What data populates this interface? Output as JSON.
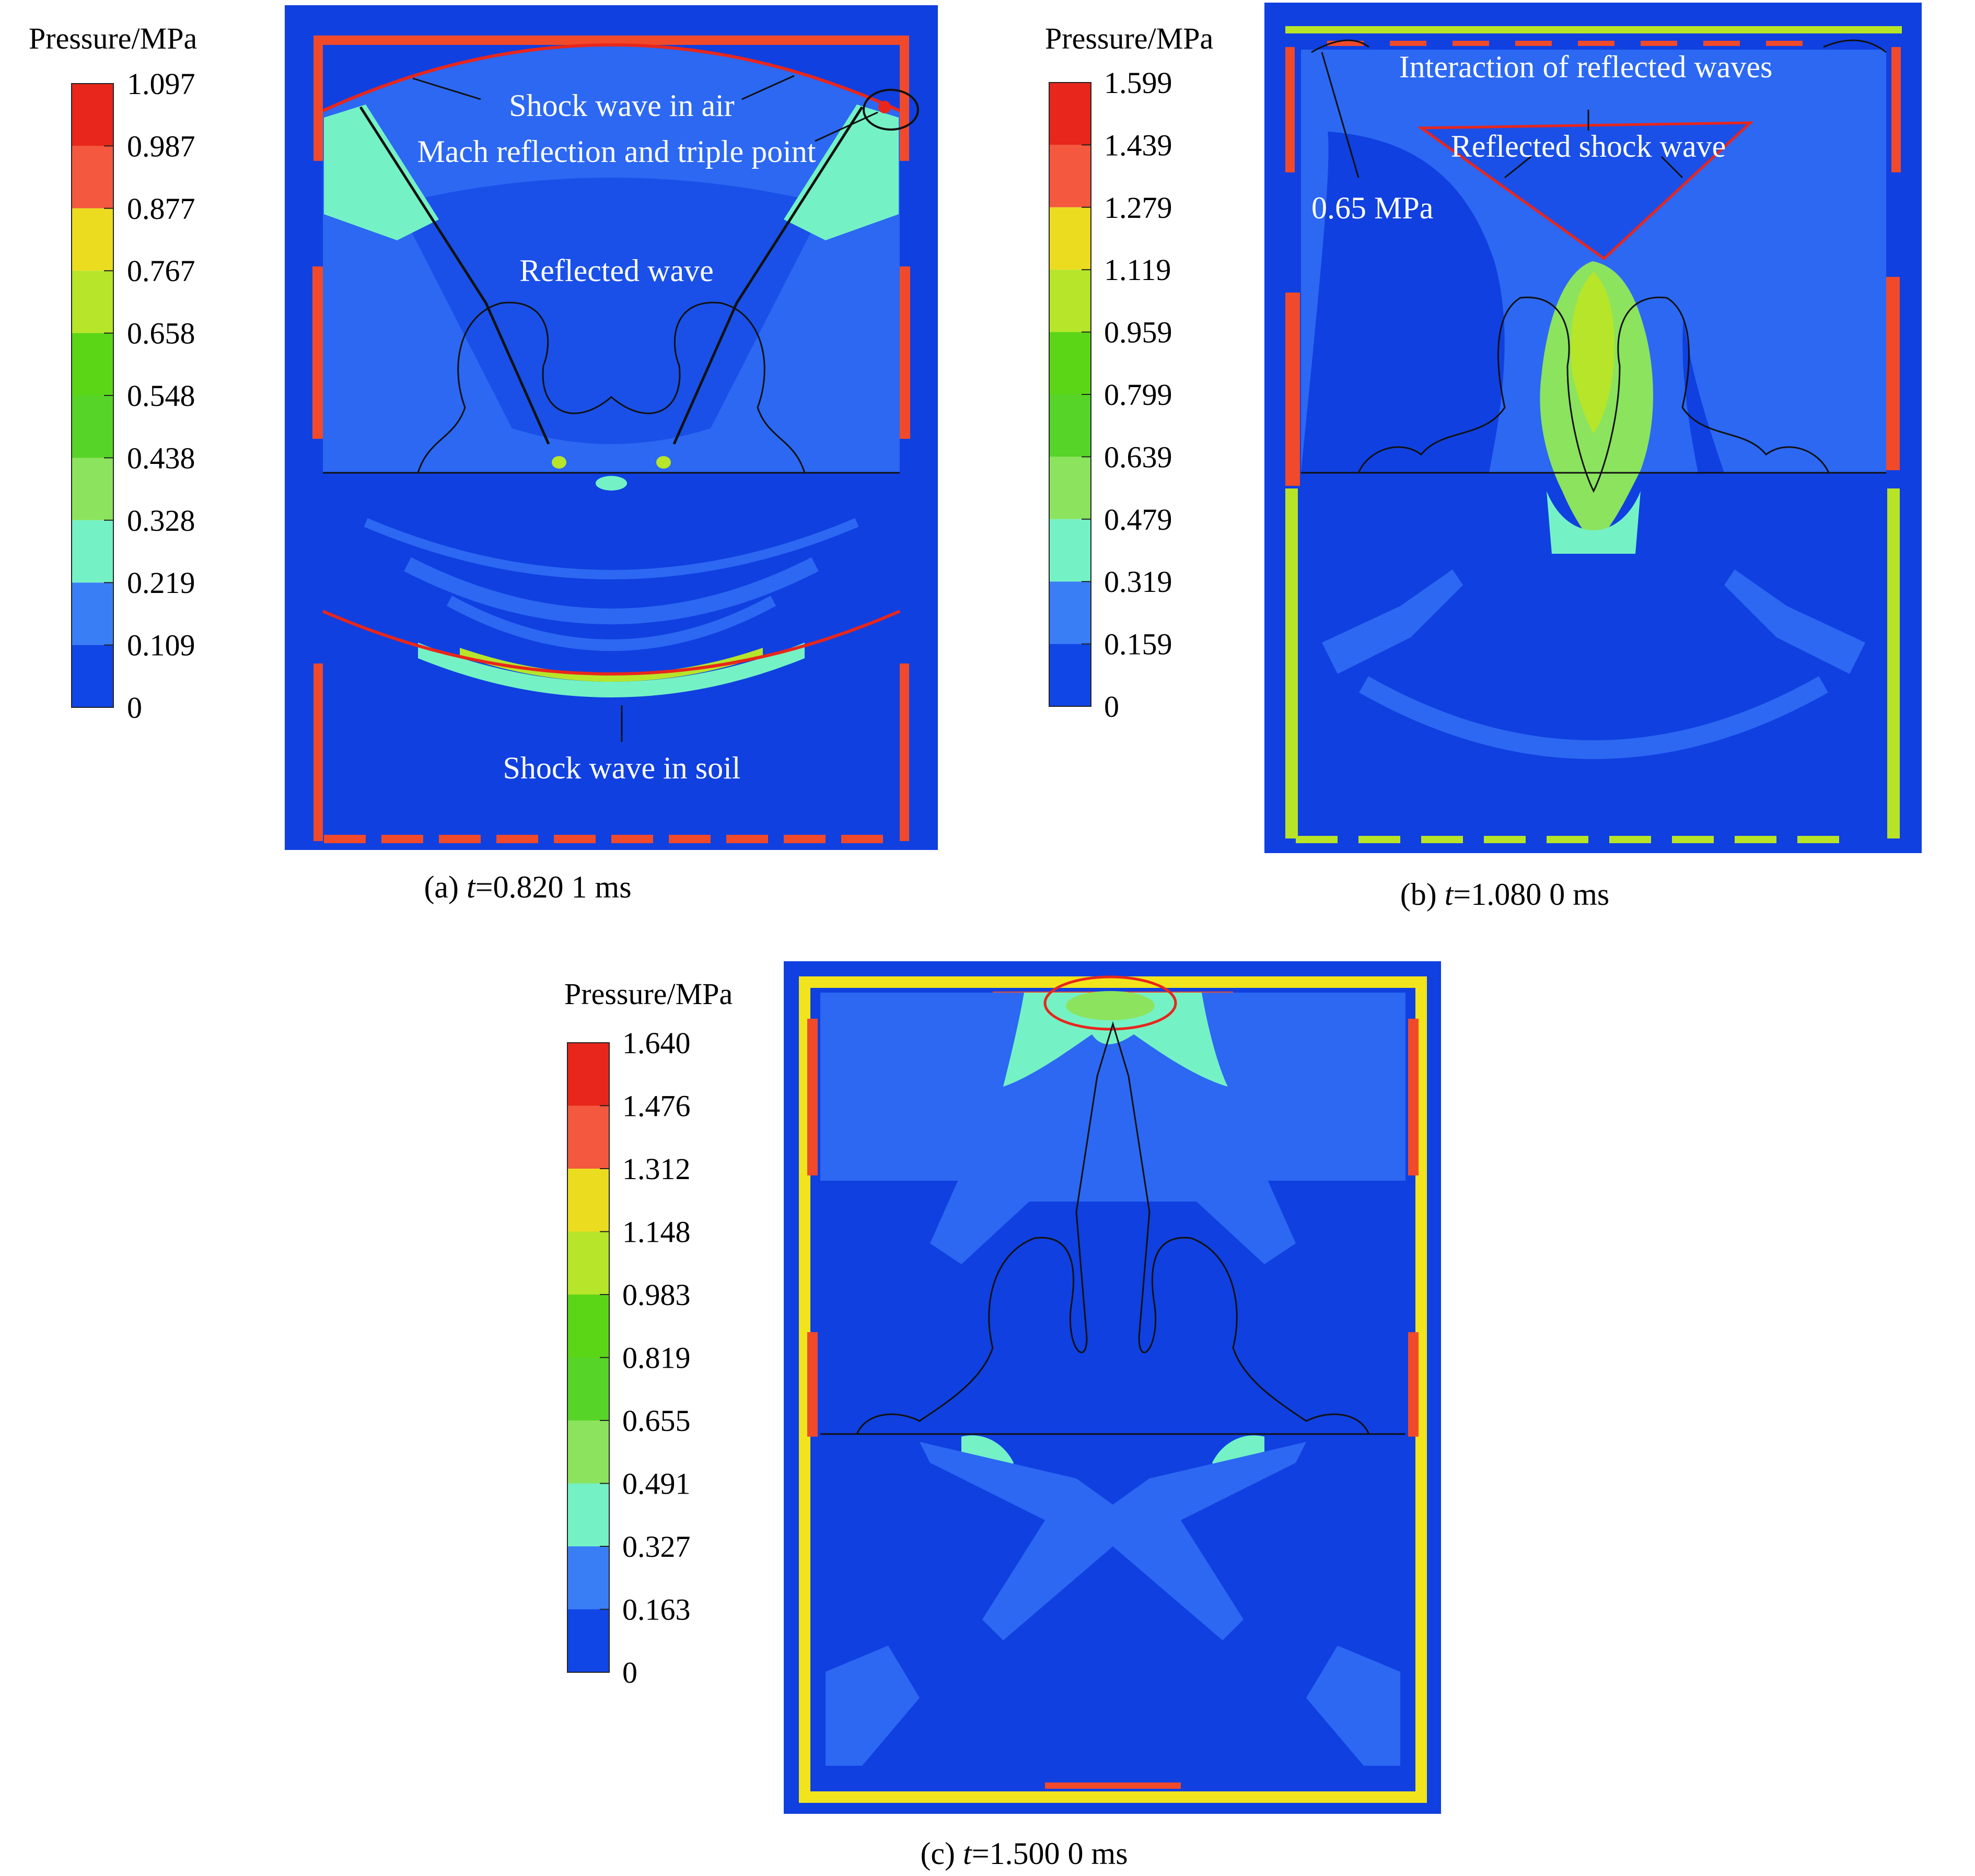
{
  "panels": [
    {
      "id": "a",
      "colorbar": {
        "title": "Pressure/MPa",
        "ticks": [
          "1.097",
          "0.987",
          "0.877",
          "0.767",
          "0.658",
          "0.548",
          "0.438",
          "0.328",
          "0.219",
          "0.109",
          "0"
        ]
      },
      "annotations": [
        "Shock wave in air",
        "Mach reflection and triple point",
        "Reflected wave",
        "Shock wave in soil"
      ],
      "caption": {
        "prefix": "(a) ",
        "var": "t",
        "value": "=0.820 1 ms"
      }
    },
    {
      "id": "b",
      "colorbar": {
        "title": "Pressure/MPa",
        "ticks": [
          "1.599",
          "1.439",
          "1.279",
          "1.119",
          "0.959",
          "0.799",
          "0.639",
          "0.479",
          "0.319",
          "0.159",
          "0"
        ]
      },
      "annotations": [
        "Interaction of reflected waves",
        "Reflected shock wave",
        "0.65 MPa"
      ],
      "caption": {
        "prefix": "(b) ",
        "var": "t",
        "value": "=1.080 0 ms"
      }
    },
    {
      "id": "c",
      "colorbar": {
        "title": "Pressure/MPa",
        "ticks": [
          "1.640",
          "1.476",
          "1.312",
          "1.148",
          "0.983",
          "0.819",
          "0.655",
          "0.491",
          "0.327",
          "0.163",
          "0"
        ]
      },
      "annotations": [],
      "caption": {
        "prefix": "(c) ",
        "var": "t",
        "value": "=1.500 0 ms"
      }
    }
  ],
  "colormap": [
    "#e8261b",
    "#f4583e",
    "#ecdc20",
    "#b6e52a",
    "#5bd617",
    "#56d427",
    "#8ce35e",
    "#74f2c6",
    "#3a7ef5",
    "#1046e6"
  ],
  "colors": {
    "field_bg": "#1040e0",
    "air_region": "#2c68f2",
    "boundary_red": "#f04a2a",
    "boundary_yellow": "#f2e41c",
    "boundary_lime": "#b8e428"
  }
}
